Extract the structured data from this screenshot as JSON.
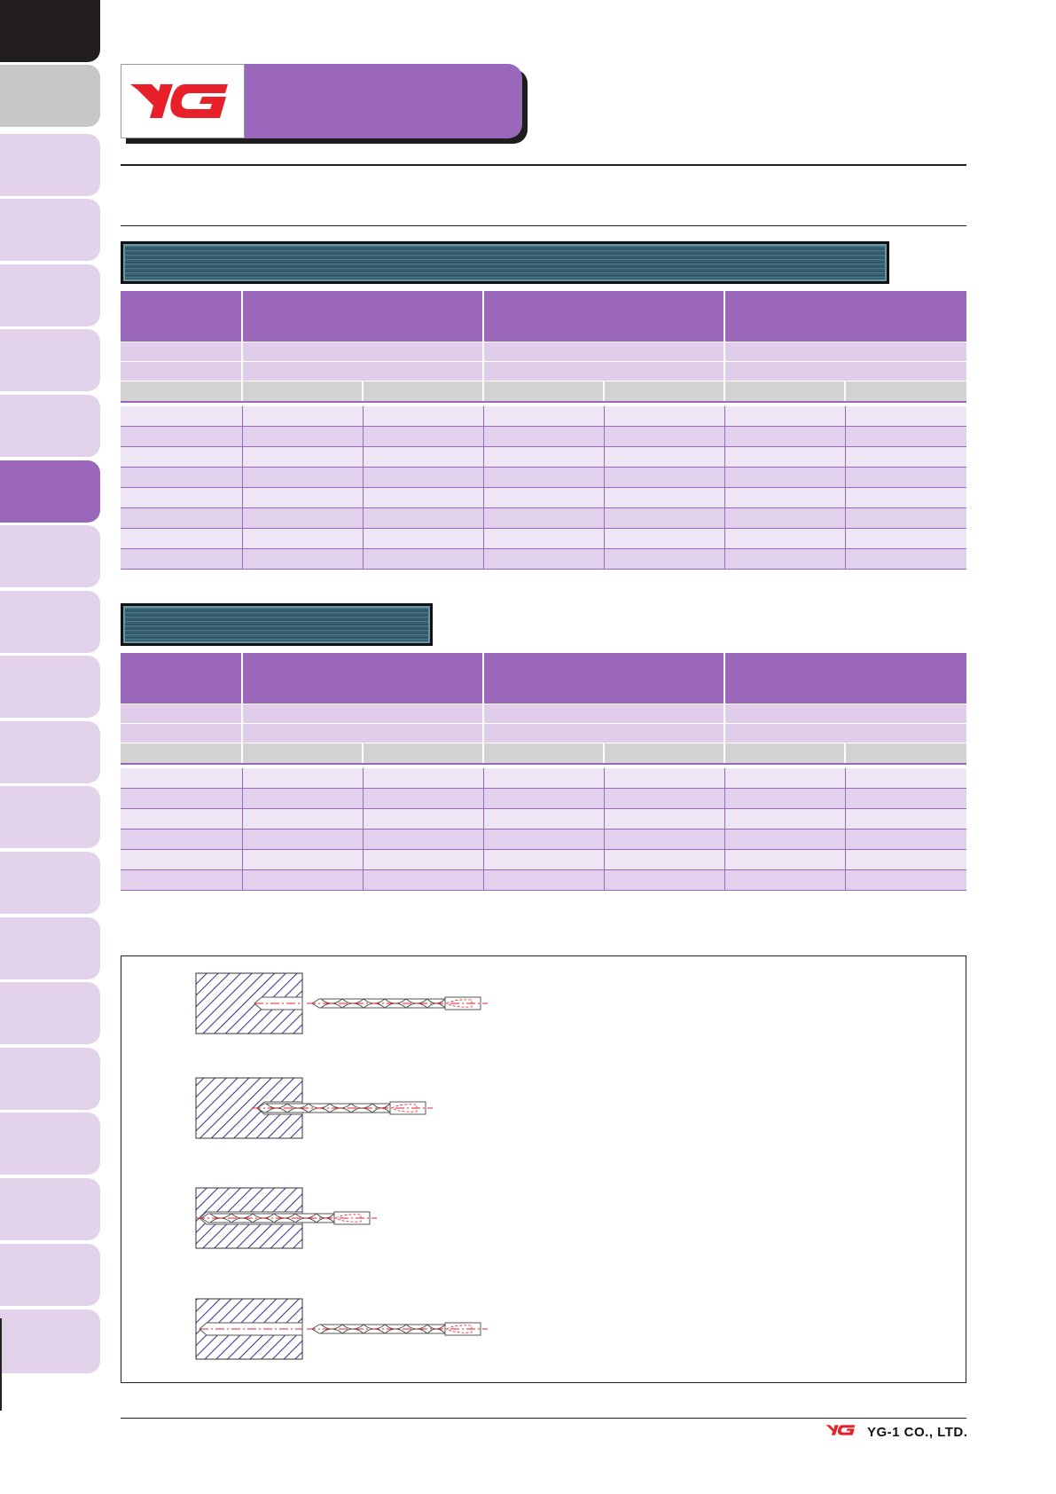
{
  "brand": {
    "logo_text": "YG",
    "accent_color": "#9b67bb",
    "logo_color": "#e8202a"
  },
  "side_tabs": {
    "count": 21,
    "active_index": 7
  },
  "table_1": {
    "data_rows": 8
  },
  "table_2": {
    "data_rows": 6
  },
  "diagram": {
    "steps": 4
  },
  "footer": {
    "company": "YG-1 CO., LTD."
  }
}
